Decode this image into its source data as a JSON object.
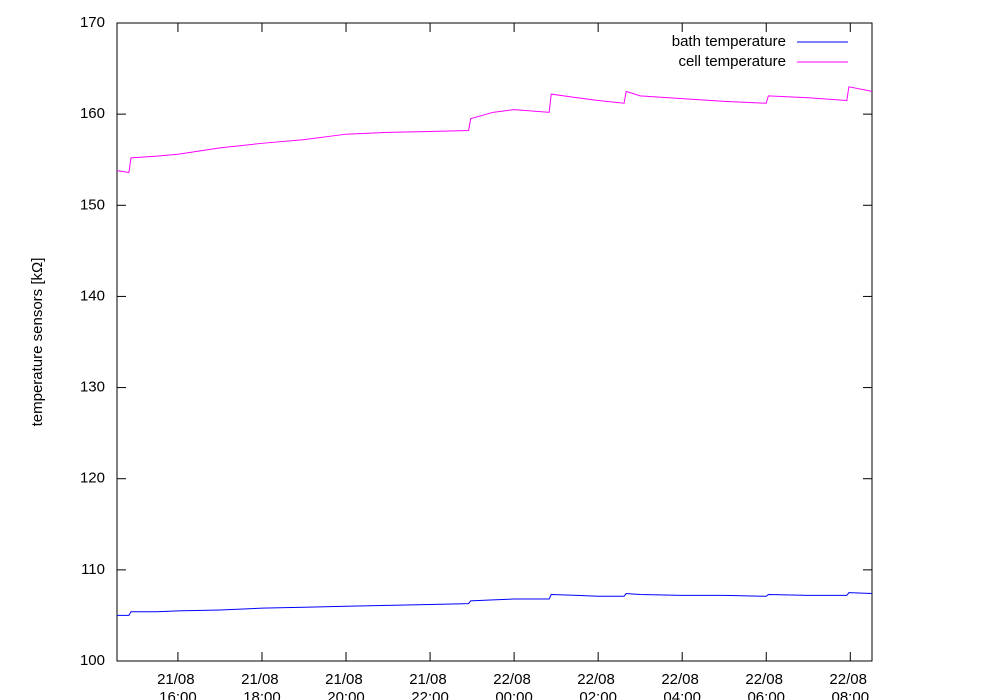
{
  "chart_data": {
    "type": "line",
    "ylabel": "temperature sensors [kΩ]",
    "x": [
      "21/08 14:33",
      "21/08 14:50",
      "21/08 14:53",
      "21/08 15:30",
      "21/08 16:00",
      "21/08 17:00",
      "21/08 18:00",
      "21/08 19:00",
      "21/08 20:00",
      "21/08 21:00",
      "21/08 22:00",
      "21/08 22:55",
      "21/08 22:58",
      "21/08 23:30",
      "22/08 00:00",
      "22/08 00:50",
      "22/08 00:53",
      "22/08 01:30",
      "22/08 02:00",
      "22/08 02:37",
      "22/08 02:40",
      "22/08 03:00",
      "22/08 04:00",
      "22/08 05:00",
      "22/08 06:00",
      "22/08 06:03",
      "22/08 07:00",
      "22/08 07:55",
      "22/08 07:58",
      "22/08 08:31"
    ],
    "series": [
      {
        "name": "bath temperature",
        "color": "#0000ff",
        "values": [
          105.0,
          105.0,
          105.4,
          105.4,
          105.5,
          105.6,
          105.8,
          105.9,
          106.0,
          106.1,
          106.2,
          106.3,
          106.6,
          106.7,
          106.8,
          106.8,
          107.3,
          107.2,
          107.1,
          107.1,
          107.4,
          107.3,
          107.2,
          107.2,
          107.1,
          107.3,
          107.2,
          107.2,
          107.5,
          107.4
        ]
      },
      {
        "name": "cell temperature",
        "color": "#ff00ff",
        "values": [
          153.8,
          153.6,
          155.2,
          155.4,
          155.6,
          156.3,
          156.8,
          157.2,
          157.8,
          158.0,
          158.1,
          158.2,
          159.5,
          160.2,
          160.5,
          160.2,
          162.2,
          161.8,
          161.5,
          161.2,
          162.5,
          162.0,
          161.7,
          161.4,
          161.2,
          162.0,
          161.8,
          161.5,
          163.0,
          162.5
        ]
      }
    ],
    "xlim": [
      "21/08 14:33",
      "22/08 08:31"
    ],
    "xticks": [
      "21/08 16:00",
      "21/08 18:00",
      "21/08 20:00",
      "21/08 22:00",
      "22/08 00:00",
      "22/08 02:00",
      "22/08 04:00",
      "22/08 06:00",
      "22/08 08:00"
    ],
    "ylim": [
      100,
      170
    ],
    "yticks": [
      100,
      110,
      120,
      130,
      140,
      150,
      160,
      170
    ],
    "legend": "upper right"
  }
}
